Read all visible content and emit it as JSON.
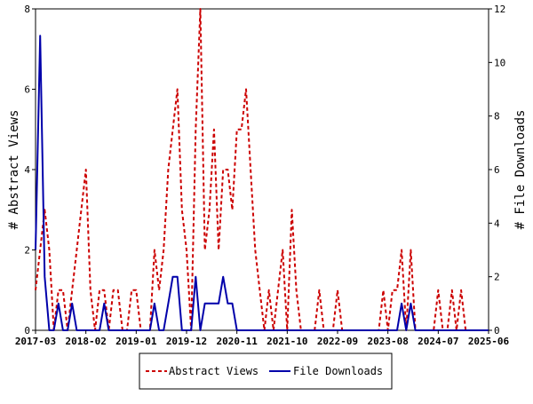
{
  "chart_data": {
    "type": "line",
    "ylabel": "# Abstract Views",
    "y2label": "# File Downloads",
    "ylim": [
      0,
      8
    ],
    "y2lim": [
      0,
      12
    ],
    "y_ticks": [
      "0",
      "2",
      "4",
      "6",
      "8"
    ],
    "y2_ticks": [
      "0",
      "2",
      "4",
      "6",
      "8",
      "10",
      "12"
    ],
    "x_ticks": [
      "2017-03",
      "2018-02",
      "2019-01",
      "2019-12",
      "2020-11",
      "2021-10",
      "2022-09",
      "2023-08",
      "2024-07",
      "2025-06"
    ],
    "x_range": [
      "2017-03",
      "2025-06"
    ],
    "legend": [
      "Abstract Views",
      "File Downloads"
    ],
    "legend_position": "bottom",
    "grid": false,
    "colors": {
      "views": "#cc0000",
      "downloads": "#0000aa"
    },
    "series": [
      {
        "name": "Abstract Views",
        "axis": "left",
        "style": "dashed",
        "points": [
          [
            "2017-03",
            1
          ],
          [
            "2017-04",
            2
          ],
          [
            "2017-05",
            3
          ],
          [
            "2017-06",
            2
          ],
          [
            "2017-07",
            0
          ],
          [
            "2017-08",
            1
          ],
          [
            "2017-09",
            1
          ],
          [
            "2017-10",
            0
          ],
          [
            "2017-11",
            1
          ],
          [
            "2017-12",
            2
          ],
          [
            "2018-01",
            3
          ],
          [
            "2018-02",
            4
          ],
          [
            "2018-03",
            1
          ],
          [
            "2018-04",
            0
          ],
          [
            "2018-05",
            1
          ],
          [
            "2018-06",
            1
          ],
          [
            "2018-07",
            0
          ],
          [
            "2018-08",
            1
          ],
          [
            "2018-09",
            1
          ],
          [
            "2018-10",
            0
          ],
          [
            "2018-11",
            0
          ],
          [
            "2018-12",
            1
          ],
          [
            "2019-01",
            1
          ],
          [
            "2019-02",
            0
          ],
          [
            "2019-03",
            0
          ],
          [
            "2019-04",
            0
          ],
          [
            "2019-05",
            2
          ],
          [
            "2019-06",
            1
          ],
          [
            "2019-07",
            2
          ],
          [
            "2019-08",
            4
          ],
          [
            "2019-09",
            5
          ],
          [
            "2019-10",
            6
          ],
          [
            "2019-11",
            3
          ],
          [
            "2019-12",
            2
          ],
          [
            "2020-01",
            0
          ],
          [
            "2020-02",
            5
          ],
          [
            "2020-03",
            8
          ],
          [
            "2020-04",
            2
          ],
          [
            "2020-05",
            3
          ],
          [
            "2020-06",
            5
          ],
          [
            "2020-07",
            2
          ],
          [
            "2020-08",
            4
          ],
          [
            "2020-09",
            4
          ],
          [
            "2020-10",
            3
          ],
          [
            "2020-11",
            5
          ],
          [
            "2020-12",
            5
          ],
          [
            "2021-01",
            6
          ],
          [
            "2021-02",
            4
          ],
          [
            "2021-03",
            2
          ],
          [
            "2021-04",
            1
          ],
          [
            "2021-05",
            0
          ],
          [
            "2021-06",
            1
          ],
          [
            "2021-07",
            0
          ],
          [
            "2021-08",
            1
          ],
          [
            "2021-09",
            2
          ],
          [
            "2021-10",
            0
          ],
          [
            "2021-11",
            3
          ],
          [
            "2021-12",
            1
          ],
          [
            "2022-01",
            0
          ],
          [
            "2022-02",
            0
          ],
          [
            "2022-03",
            0
          ],
          [
            "2022-04",
            0
          ],
          [
            "2022-05",
            1
          ],
          [
            "2022-06",
            0
          ],
          [
            "2022-07",
            0
          ],
          [
            "2022-08",
            0
          ],
          [
            "2022-09",
            1
          ],
          [
            "2022-10",
            0
          ],
          [
            "2022-11",
            0
          ],
          [
            "2022-12",
            0
          ],
          [
            "2023-01",
            0
          ],
          [
            "2023-02",
            0
          ],
          [
            "2023-03",
            0
          ],
          [
            "2023-04",
            0
          ],
          [
            "2023-05",
            0
          ],
          [
            "2023-06",
            0
          ],
          [
            "2023-07",
            1
          ],
          [
            "2023-08",
            0
          ],
          [
            "2023-09",
            1
          ],
          [
            "2023-10",
            1
          ],
          [
            "2023-11",
            2
          ],
          [
            "2023-12",
            0
          ],
          [
            "2024-01",
            2
          ],
          [
            "2024-02",
            0
          ],
          [
            "2024-03",
            0
          ],
          [
            "2024-04",
            0
          ],
          [
            "2024-05",
            0
          ],
          [
            "2024-06",
            0
          ],
          [
            "2024-07",
            1
          ],
          [
            "2024-08",
            0
          ],
          [
            "2024-09",
            0
          ],
          [
            "2024-10",
            1
          ],
          [
            "2024-11",
            0
          ],
          [
            "2024-12",
            1
          ],
          [
            "2025-01",
            0
          ],
          [
            "2025-02",
            0
          ],
          [
            "2025-03",
            0
          ],
          [
            "2025-04",
            0
          ],
          [
            "2025-05",
            0
          ],
          [
            "2025-06",
            0
          ]
        ]
      },
      {
        "name": "File Downloads",
        "axis": "right",
        "style": "solid",
        "points": [
          [
            "2017-03",
            3
          ],
          [
            "2017-04",
            11
          ],
          [
            "2017-05",
            2
          ],
          [
            "2017-06",
            0
          ],
          [
            "2017-07",
            0
          ],
          [
            "2017-08",
            1
          ],
          [
            "2017-09",
            0
          ],
          [
            "2017-10",
            0
          ],
          [
            "2017-11",
            1
          ],
          [
            "2017-12",
            0
          ],
          [
            "2018-01",
            0
          ],
          [
            "2018-02",
            0
          ],
          [
            "2018-03",
            0
          ],
          [
            "2018-04",
            0
          ],
          [
            "2018-05",
            0
          ],
          [
            "2018-06",
            1
          ],
          [
            "2018-07",
            0
          ],
          [
            "2018-08",
            0
          ],
          [
            "2018-09",
            0
          ],
          [
            "2018-10",
            0
          ],
          [
            "2018-11",
            0
          ],
          [
            "2018-12",
            0
          ],
          [
            "2019-01",
            0
          ],
          [
            "2019-02",
            0
          ],
          [
            "2019-03",
            0
          ],
          [
            "2019-04",
            0
          ],
          [
            "2019-05",
            1
          ],
          [
            "2019-06",
            0
          ],
          [
            "2019-07",
            0
          ],
          [
            "2019-08",
            1
          ],
          [
            "2019-09",
            2
          ],
          [
            "2019-10",
            2
          ],
          [
            "2019-11",
            0
          ],
          [
            "2019-12",
            0
          ],
          [
            "2020-01",
            0
          ],
          [
            "2020-02",
            2
          ],
          [
            "2020-03",
            0
          ],
          [
            "2020-04",
            1
          ],
          [
            "2020-05",
            1
          ],
          [
            "2020-06",
            1
          ],
          [
            "2020-07",
            1
          ],
          [
            "2020-08",
            2
          ],
          [
            "2020-09",
            1
          ],
          [
            "2020-10",
            1
          ],
          [
            "2020-11",
            0
          ],
          [
            "2020-12",
            0
          ],
          [
            "2021-01",
            0
          ],
          [
            "2021-02",
            0
          ],
          [
            "2021-03",
            0
          ],
          [
            "2021-04",
            0
          ],
          [
            "2021-05",
            0
          ],
          [
            "2021-06",
            0
          ],
          [
            "2021-07",
            0
          ],
          [
            "2021-08",
            0
          ],
          [
            "2021-09",
            0
          ],
          [
            "2021-10",
            0
          ],
          [
            "2021-11",
            0
          ],
          [
            "2021-12",
            0
          ],
          [
            "2022-01",
            0
          ],
          [
            "2022-02",
            0
          ],
          [
            "2022-03",
            0
          ],
          [
            "2022-04",
            0
          ],
          [
            "2022-05",
            0
          ],
          [
            "2022-06",
            0
          ],
          [
            "2022-07",
            0
          ],
          [
            "2022-08",
            0
          ],
          [
            "2022-09",
            0
          ],
          [
            "2022-10",
            0
          ],
          [
            "2022-11",
            0
          ],
          [
            "2022-12",
            0
          ],
          [
            "2023-01",
            0
          ],
          [
            "2023-02",
            0
          ],
          [
            "2023-03",
            0
          ],
          [
            "2023-04",
            0
          ],
          [
            "2023-05",
            0
          ],
          [
            "2023-06",
            0
          ],
          [
            "2023-07",
            0
          ],
          [
            "2023-08",
            0
          ],
          [
            "2023-09",
            0
          ],
          [
            "2023-10",
            0
          ],
          [
            "2023-11",
            1
          ],
          [
            "2023-12",
            0
          ],
          [
            "2024-01",
            1
          ],
          [
            "2024-02",
            0
          ],
          [
            "2024-03",
            0
          ],
          [
            "2024-04",
            0
          ],
          [
            "2024-05",
            0
          ],
          [
            "2024-06",
            0
          ],
          [
            "2024-07",
            0
          ],
          [
            "2024-08",
            0
          ],
          [
            "2024-09",
            0
          ],
          [
            "2024-10",
            0
          ],
          [
            "2024-11",
            0
          ],
          [
            "2024-12",
            0
          ],
          [
            "2025-01",
            0
          ],
          [
            "2025-02",
            0
          ],
          [
            "2025-03",
            0
          ],
          [
            "2025-04",
            0
          ],
          [
            "2025-05",
            0
          ],
          [
            "2025-06",
            0
          ]
        ]
      }
    ]
  }
}
